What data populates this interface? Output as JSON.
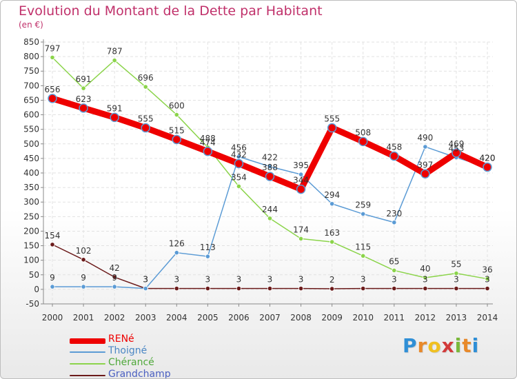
{
  "chart_data": {
    "type": "line",
    "title": "Evolution du Montant de la Dette par Habitant",
    "subtitle": "(en €)",
    "xlabel": "",
    "ylabel": "",
    "x": [
      "2000",
      "2001",
      "2002",
      "2003",
      "2004",
      "2005",
      "2006",
      "2007",
      "2008",
      "2009",
      "2010",
      "2011",
      "2012",
      "2013",
      "2014"
    ],
    "ylim": [
      -50,
      850
    ],
    "ytick_step": 50,
    "yticks": [
      "-50",
      "0",
      "50",
      "100",
      "150",
      "200",
      "250",
      "300",
      "350",
      "400",
      "450",
      "500",
      "550",
      "600",
      "650",
      "700",
      "750",
      "800",
      "850"
    ],
    "grid": true,
    "legend_position": "bottom-left",
    "series": [
      {
        "name": "RENé",
        "color": "#ee0000",
        "values": [
          656,
          623,
          591,
          555,
          515,
          474,
          432,
          388,
          344,
          555,
          508,
          458,
          397,
          469,
          420
        ],
        "labels": [
          "656",
          "623",
          "591",
          "555",
          "515",
          "474",
          "432",
          "388",
          "344",
          "555",
          "508",
          "458",
          "397",
          "469",
          "420"
        ]
      },
      {
        "name": "Thoigné",
        "color": "#5b9bd5",
        "values": [
          9,
          9,
          9,
          3,
          126,
          113,
          456,
          422,
          395,
          294,
          259,
          230,
          490,
          453,
          420
        ],
        "labels": [
          "9",
          "9",
          "9",
          "3",
          "126",
          "113",
          "456",
          "422",
          "395",
          "294",
          "259",
          "230",
          "490",
          "453",
          "420"
        ]
      },
      {
        "name": "Chérancé",
        "color": "#8bd44a",
        "values": [
          797,
          691,
          787,
          696,
          600,
          488,
          354,
          244,
          174,
          163,
          115,
          65,
          40,
          55,
          36
        ],
        "labels": [
          "797",
          "691",
          "787",
          "696",
          "600",
          "488",
          "354",
          "244",
          "174",
          "163",
          "115",
          "65",
          "40",
          "55",
          "36"
        ]
      },
      {
        "name": "Grandchamp",
        "color": "#6b1a1a",
        "values": [
          154,
          102,
          42,
          3,
          3,
          3,
          3,
          3,
          3,
          2,
          3,
          3,
          3,
          3,
          3
        ],
        "labels": [
          "154",
          "102",
          "42",
          "3",
          "3",
          "3",
          "3",
          "3",
          "3",
          "2",
          "3",
          "3",
          "3",
          "3",
          "3"
        ]
      }
    ]
  },
  "brand": {
    "letters": [
      "P",
      "r",
      "o",
      "x",
      "i",
      "t",
      "i"
    ],
    "colors": [
      "#2f8fd6",
      "#e8892a",
      "#f0c020",
      "#d23a3a",
      "#7ab83a",
      "#e8892a",
      "#2f8fd6"
    ]
  }
}
